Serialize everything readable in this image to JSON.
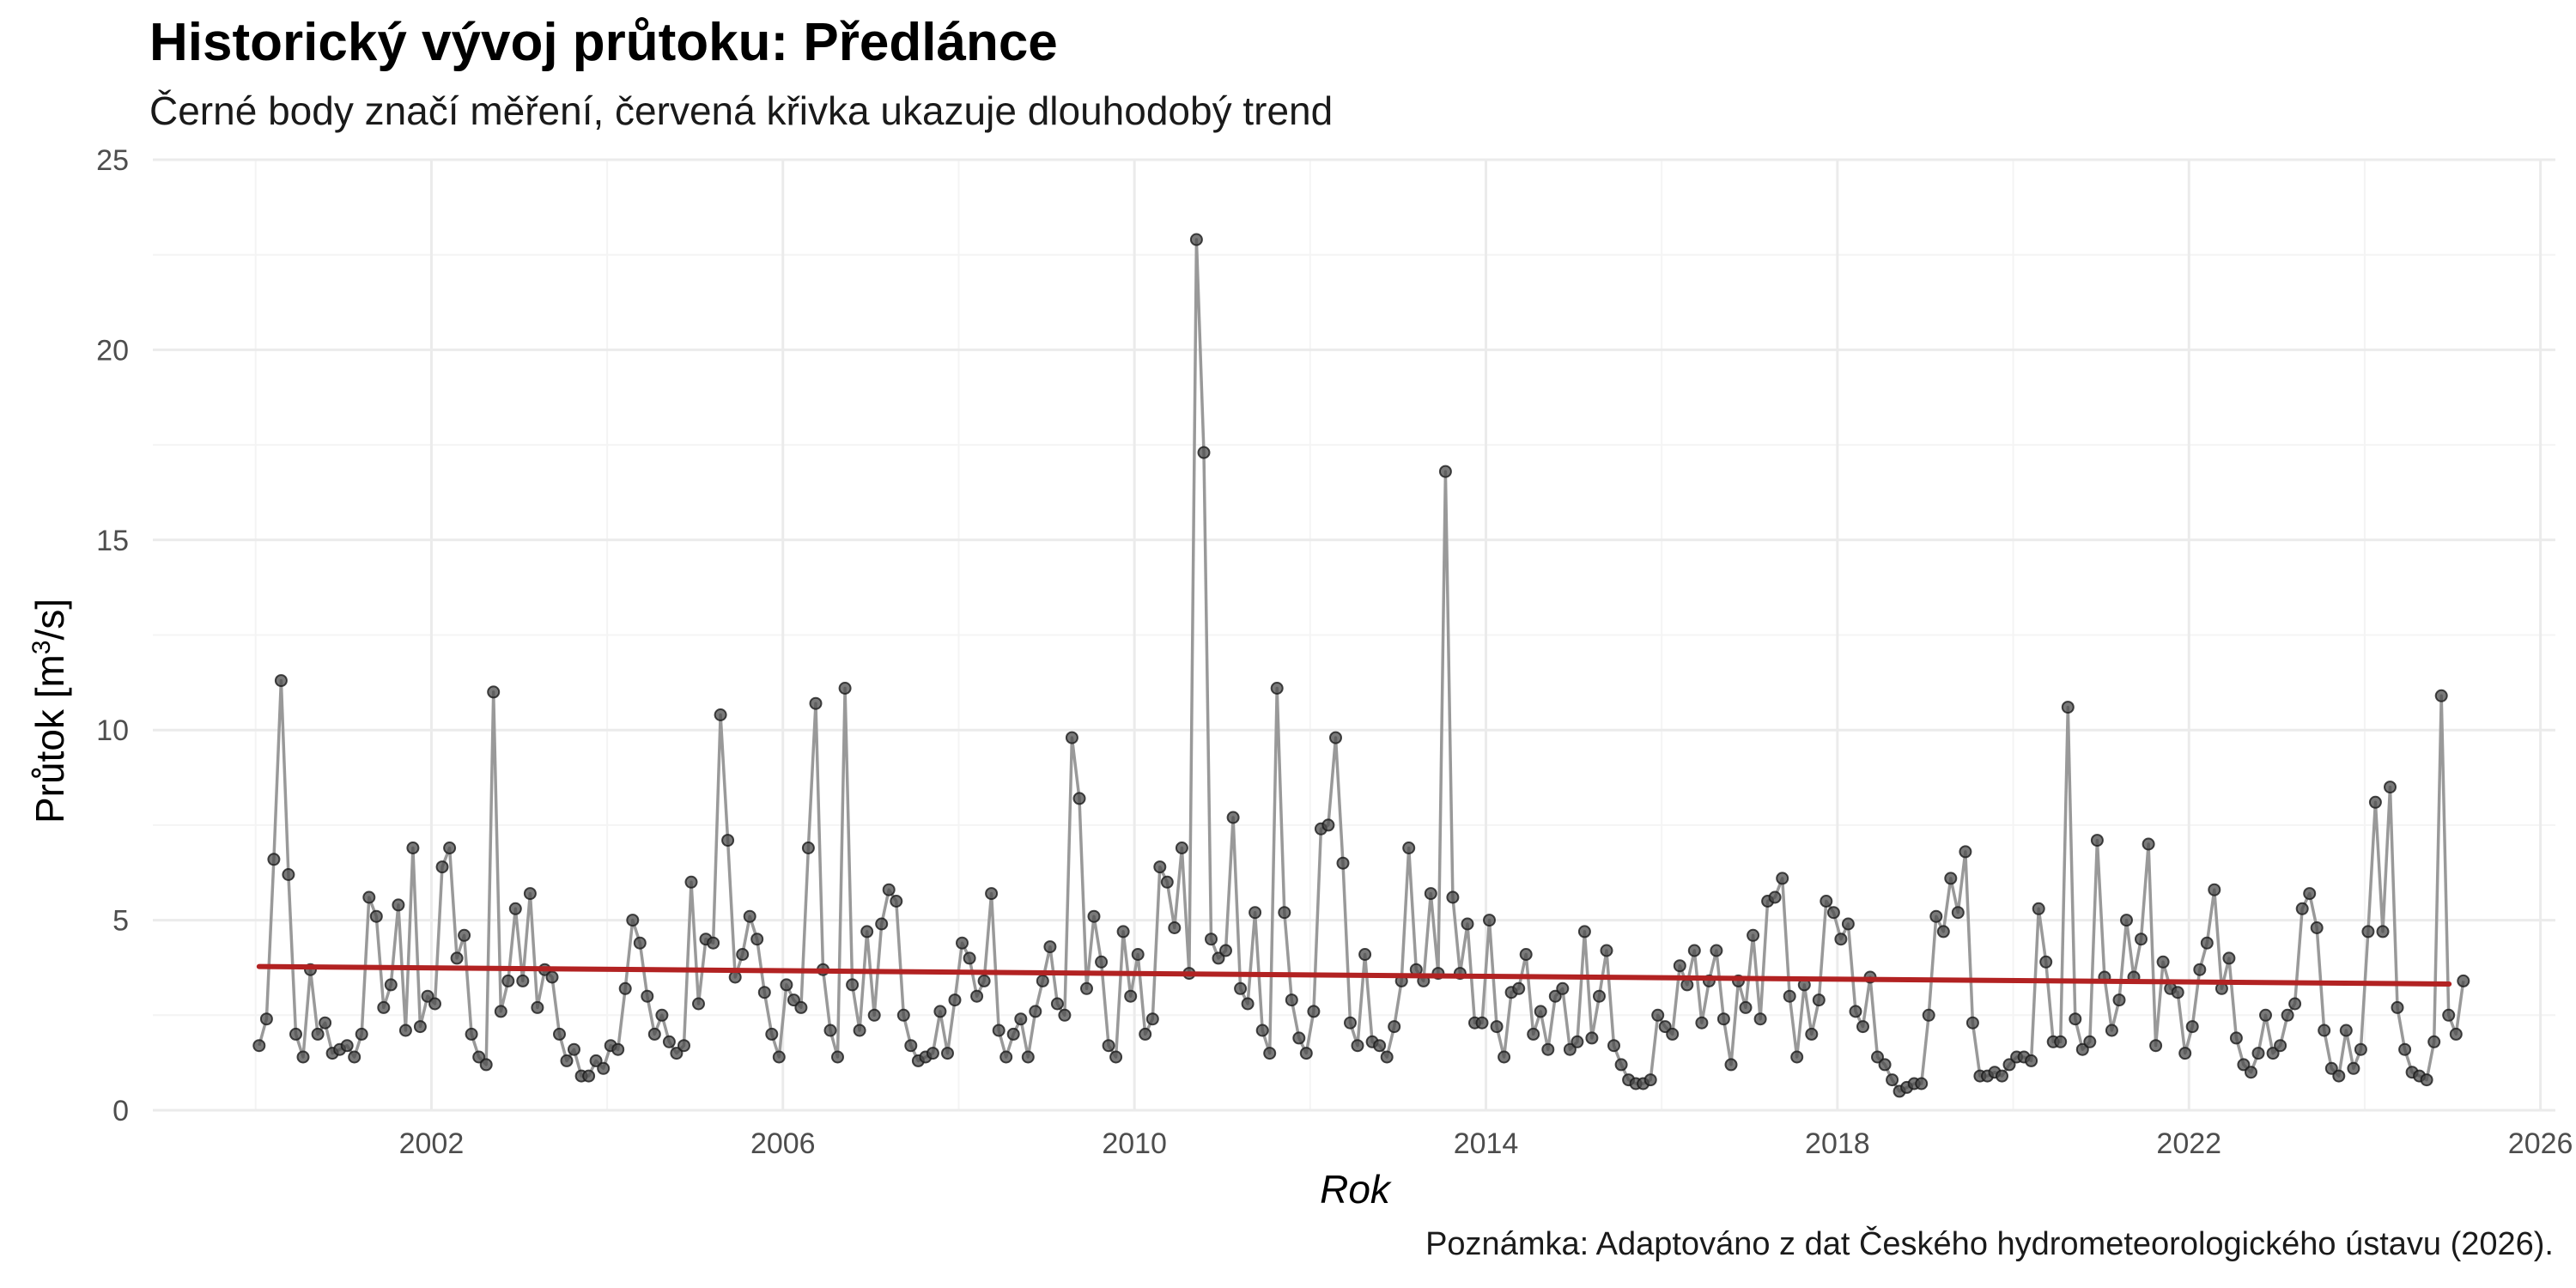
{
  "header": {
    "title": "Historický vývoj průtoku: Předlánce",
    "subtitle": "Černé body značí měření, červená křivka ukazuje dlouhodobý trend",
    "caption": "Poznámka: Adaptováno z dat Českého hydrometeorologického ústavu (2026)."
  },
  "colors": {
    "line": "#999999",
    "point": "#4d4d4d",
    "trend": "#b22222",
    "grid_major": "#ebebeb",
    "grid_minor": "#f4f4f4"
  },
  "chart_data": {
    "type": "line",
    "title": "Historický vývoj průtoku: Předlánce",
    "subtitle": "Černé body značí měření, červená křivka ukazuje dlouhodobý trend",
    "xlabel": "Rok",
    "ylabel_prefix": "Průtok [m",
    "ylabel_sup": "3",
    "ylabel_suffix": "/s]",
    "xlim": [
      1998.83,
      2026.17
    ],
    "ylim": [
      0,
      25
    ],
    "x_ticks": [
      2002,
      2006,
      2010,
      2014,
      2018,
      2022,
      2026
    ],
    "x_minor_ticks": [
      2000,
      2004,
      2008,
      2012,
      2016,
      2020,
      2024
    ],
    "y_ticks": [
      0,
      5,
      10,
      15,
      20,
      25
    ],
    "y_minor_ticks": [
      2.5,
      7.5,
      12.5,
      17.5,
      22.5
    ],
    "x_start": 2000.04,
    "x_step": 0.08333,
    "series": [
      {
        "name": "Průtok",
        "values": [
          1.7,
          2.4,
          6.6,
          11.3,
          6.2,
          2.0,
          1.4,
          3.7,
          2.0,
          2.3,
          1.5,
          1.6,
          1.7,
          1.4,
          2.0,
          5.6,
          5.1,
          2.7,
          3.3,
          5.4,
          2.1,
          6.9,
          2.2,
          3.0,
          2.8,
          6.4,
          6.9,
          4.0,
          4.6,
          2.0,
          1.4,
          1.2,
          11.0,
          2.6,
          3.4,
          5.3,
          3.4,
          5.7,
          2.7,
          3.7,
          3.5,
          2.0,
          1.3,
          1.6,
          0.9,
          0.9,
          1.3,
          1.1,
          1.7,
          1.6,
          3.2,
          5.0,
          4.4,
          3.0,
          2.0,
          2.5,
          1.8,
          1.5,
          1.7,
          6.0,
          2.8,
          4.5,
          4.4,
          10.4,
          7.1,
          3.5,
          4.1,
          5.1,
          4.5,
          3.1,
          2.0,
          1.4,
          3.3,
          2.9,
          2.7,
          6.9,
          10.7,
          3.7,
          2.1,
          1.4,
          11.1,
          3.3,
          2.1,
          4.7,
          2.5,
          4.9,
          5.8,
          5.5,
          2.5,
          1.7,
          1.3,
          1.4,
          1.5,
          2.6,
          1.5,
          2.9,
          4.4,
          4.0,
          3.0,
          3.4,
          5.7,
          2.1,
          1.4,
          2.0,
          2.4,
          1.4,
          2.6,
          3.4,
          4.3,
          2.8,
          2.5,
          9.8,
          8.2,
          3.2,
          5.1,
          3.9,
          1.7,
          1.4,
          4.7,
          3.0,
          4.1,
          2.0,
          2.4,
          6.4,
          6.0,
          4.8,
          6.9,
          3.6,
          22.9,
          17.3,
          4.5,
          4.0,
          4.2,
          7.7,
          3.2,
          2.8,
          5.2,
          2.1,
          1.5,
          11.1,
          5.2,
          2.9,
          1.9,
          1.5,
          2.6,
          7.4,
          7.5,
          9.8,
          6.5,
          2.3,
          1.7,
          4.1,
          1.8,
          1.7,
          1.4,
          2.2,
          3.4,
          6.9,
          3.7,
          3.4,
          5.7,
          3.6,
          16.8,
          5.6,
          3.6,
          4.9,
          2.3,
          2.3,
          5.0,
          2.2,
          1.4,
          3.1,
          3.2,
          4.1,
          2.0,
          2.6,
          1.6,
          3.0,
          3.2,
          1.6,
          1.8,
          4.7,
          1.9,
          3.0,
          4.2,
          1.7,
          1.2,
          0.8,
          0.7,
          0.7,
          0.8,
          2.5,
          2.2,
          2.0,
          3.8,
          3.3,
          4.2,
          2.3,
          3.4,
          4.2,
          2.4,
          1.2,
          3.4,
          2.7,
          4.6,
          2.4,
          5.5,
          5.6,
          6.1,
          3.0,
          1.4,
          3.3,
          2.0,
          2.9,
          5.5,
          5.2,
          4.5,
          4.9,
          2.6,
          2.2,
          3.5,
          1.4,
          1.2,
          0.8,
          0.5,
          0.6,
          0.7,
          0.7,
          2.5,
          5.1,
          4.7,
          6.1,
          5.2,
          6.8,
          2.3,
          0.9,
          0.9,
          1.0,
          0.9,
          1.2,
          1.4,
          1.4,
          1.3,
          5.3,
          3.9,
          1.8,
          1.8,
          10.6,
          2.4,
          1.6,
          1.8,
          7.1,
          3.5,
          2.1,
          2.9,
          5.0,
          3.5,
          4.5,
          7.0,
          1.7,
          3.9,
          3.2,
          3.1,
          1.5,
          2.2,
          3.7,
          4.4,
          5.8,
          3.2,
          4.0,
          1.9,
          1.2,
          1.0,
          1.5,
          2.5,
          1.5,
          1.7,
          2.5,
          2.8,
          5.3,
          5.7,
          4.8,
          2.1,
          1.1,
          0.9,
          2.1,
          1.1,
          1.6,
          4.7,
          8.1,
          4.7,
          8.5,
          2.7,
          1.6,
          1.0,
          0.9,
          0.8,
          1.8,
          10.9,
          2.5,
          2.0,
          3.4
        ]
      },
      {
        "name": "Trend",
        "x": [
          2000.04,
          2024.96
        ],
        "values": [
          3.78,
          3.32
        ]
      }
    ]
  }
}
